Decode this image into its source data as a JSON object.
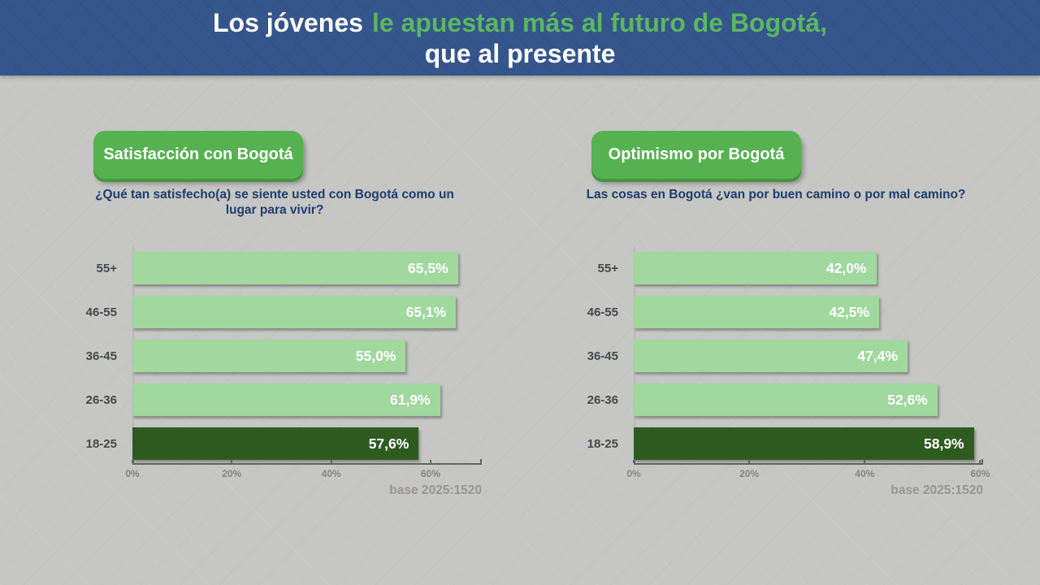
{
  "header": {
    "title_line1_white": "Los jóvenes",
    "title_line1_green": "le apuestan más al futuro de Bogotá,",
    "title_line2": "que al presente"
  },
  "colors": {
    "header_bg": "#35568c",
    "header_green": "#5bb662",
    "page_bg": "#c6c6c4",
    "bar_light": "#a0d89e",
    "bar_dark": "#2e5c20",
    "pill_green": "#56b251",
    "question_navy": "#1e3d6e",
    "axis_line": "#63635f",
    "tick_gray": "#85847f",
    "base_gray": "#97968f"
  },
  "chart_data": [
    {
      "type": "bar",
      "orientation": "horizontal",
      "title": "Satisfacción con Bogotá",
      "question": "¿Qué tan satisfecho(a) se siente usted con Bogotá como un lugar para vivir?",
      "categories": [
        "55+",
        "46-55",
        "36-45",
        "26-36",
        "18-25"
      ],
      "values": [
        65.5,
        65.1,
        55.0,
        61.9,
        57.6
      ],
      "value_labels": [
        "65,5%",
        "65,1%",
        "55,0%",
        "61,9%",
        "57,6%"
      ],
      "highlight_index": 4,
      "highlight_category": "18-25",
      "axis_ticks": [
        0,
        20,
        40,
        60
      ],
      "axis_tick_labels": [
        "0%",
        "20%",
        "40%",
        "60%"
      ],
      "axis_max": 70.3,
      "xlim": [
        0,
        70.3
      ],
      "grid": "off",
      "base_note": "base 2025:1520"
    },
    {
      "type": "bar",
      "orientation": "horizontal",
      "title": "Optimismo por Bogotá",
      "question": "Las cosas en Bogotá ¿van por buen camino o por mal camino?",
      "categories": [
        "55+",
        "46-55",
        "36-45",
        "26-36",
        "18-25"
      ],
      "values": [
        42.0,
        42.5,
        47.4,
        52.6,
        58.9
      ],
      "value_labels": [
        "42,0%",
        "42,5%",
        "47,4%",
        "52,6%",
        "58,9%"
      ],
      "highlight_index": 4,
      "highlight_category": "18-25",
      "axis_ticks": [
        0,
        20,
        40,
        60
      ],
      "axis_tick_labels": [
        "0%",
        "20%",
        "40%",
        "60%"
      ],
      "axis_max": 60.5,
      "xlim": [
        0,
        60.5
      ],
      "grid": "off",
      "base_note": "base 2025:1520"
    }
  ]
}
